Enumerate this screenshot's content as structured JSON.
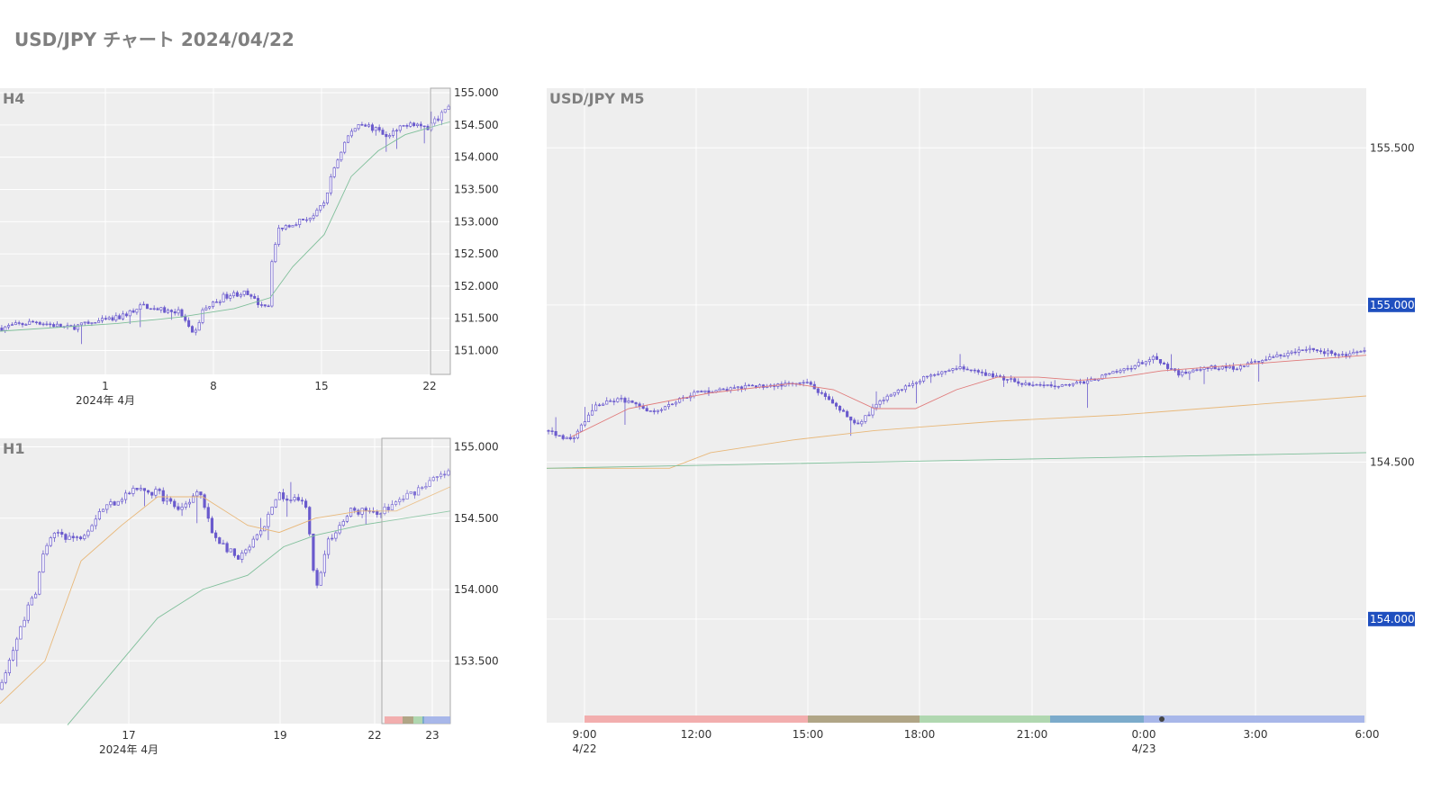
{
  "page_title": "USD/JPY チャート 2024/04/22",
  "colors": {
    "plot_bg": "#eeeeee",
    "grid": "#ffffff",
    "candle": "#6a5acd",
    "ma_fast": "#e07a7a",
    "ma_mid": "#e8b87a",
    "ma_slow": "#7fbf9a",
    "price_label_bg": "#1f4fbf",
    "session_colors": [
      "#f2a6a6",
      "#a89c7a",
      "#a8d4a8",
      "#6fa3c6",
      "#a0b0e8"
    ]
  },
  "chart_data": [
    {
      "id": "h4",
      "type": "candlestick",
      "title": "H4",
      "y_ticks": [
        "151.000",
        "151.500",
        "152.000",
        "152.500",
        "153.000",
        "153.500",
        "154.000",
        "154.500",
        "155.000"
      ],
      "ylim": [
        150.63,
        155.07
      ],
      "x_ticks": [
        "1",
        "8",
        "15",
        "22"
      ],
      "x_sublabel": "2024年 4月",
      "grid": true,
      "highlight_last": true,
      "close_path": [
        [
          0,
          151.35
        ],
        [
          0.08,
          151.45
        ],
        [
          0.15,
          151.35
        ],
        [
          0.2,
          151.42
        ],
        [
          0.26,
          151.5
        ],
        [
          0.32,
          151.7
        ],
        [
          0.36,
          151.62
        ],
        [
          0.4,
          151.6
        ],
        [
          0.43,
          151.2
        ],
        [
          0.45,
          151.62
        ],
        [
          0.5,
          151.85
        ],
        [
          0.54,
          151.9
        ],
        [
          0.57,
          151.75
        ],
        [
          0.6,
          151.7
        ],
        [
          0.6,
          152.3
        ],
        [
          0.62,
          152.9
        ],
        [
          0.7,
          153.1
        ],
        [
          0.72,
          153.3
        ],
        [
          0.74,
          153.8
        ],
        [
          0.77,
          154.3
        ],
        [
          0.8,
          154.55
        ],
        [
          0.84,
          154.4
        ],
        [
          0.86,
          154.3
        ],
        [
          0.91,
          154.55
        ],
        [
          0.95,
          154.45
        ],
        [
          1.0,
          154.8
        ]
      ],
      "ma_slow": [
        [
          0,
          151.3
        ],
        [
          0.26,
          151.42
        ],
        [
          0.4,
          151.52
        ],
        [
          0.52,
          151.65
        ],
        [
          0.6,
          151.82
        ],
        [
          0.65,
          152.3
        ],
        [
          0.72,
          152.8
        ],
        [
          0.78,
          153.7
        ],
        [
          0.84,
          154.1
        ],
        [
          0.9,
          154.35
        ],
        [
          1.0,
          154.55
        ]
      ]
    },
    {
      "id": "h1",
      "type": "candlestick",
      "title": "H1",
      "y_ticks": [
        "153.500",
        "154.000",
        "154.500",
        "155.000"
      ],
      "ylim": [
        153.06,
        155.06
      ],
      "x_ticks": [
        "17",
        "19",
        "22",
        "23"
      ],
      "x_sublabel": "2024年 4月",
      "grid": true,
      "highlight_last": true,
      "close_path": [
        [
          0,
          153.3
        ],
        [
          0.04,
          153.7
        ],
        [
          0.08,
          154.0
        ],
        [
          0.1,
          154.3
        ],
        [
          0.13,
          154.4
        ],
        [
          0.17,
          154.35
        ],
        [
          0.2,
          154.45
        ],
        [
          0.22,
          154.55
        ],
        [
          0.27,
          154.65
        ],
        [
          0.3,
          154.7
        ],
        [
          0.35,
          154.68
        ],
        [
          0.4,
          154.55
        ],
        [
          0.44,
          154.72
        ],
        [
          0.47,
          154.4
        ],
        [
          0.53,
          154.2
        ],
        [
          0.58,
          154.4
        ],
        [
          0.62,
          154.65
        ],
        [
          0.68,
          154.6
        ],
        [
          0.7,
          154.0
        ],
        [
          0.73,
          154.35
        ],
        [
          0.78,
          154.55
        ],
        [
          0.85,
          154.55
        ],
        [
          0.9,
          154.65
        ],
        [
          0.95,
          154.75
        ],
        [
          1.0,
          154.82
        ]
      ],
      "ma_mid": [
        [
          0,
          153.2
        ],
        [
          0.1,
          153.5
        ],
        [
          0.18,
          154.2
        ],
        [
          0.27,
          154.45
        ],
        [
          0.35,
          154.65
        ],
        [
          0.45,
          154.65
        ],
        [
          0.55,
          154.45
        ],
        [
          0.62,
          154.4
        ],
        [
          0.7,
          154.5
        ],
        [
          0.8,
          154.55
        ],
        [
          0.88,
          154.55
        ],
        [
          1.0,
          154.72
        ]
      ],
      "ma_slow": [
        [
          0.15,
          153.05
        ],
        [
          0.27,
          153.5
        ],
        [
          0.35,
          153.8
        ],
        [
          0.45,
          154.0
        ],
        [
          0.55,
          154.1
        ],
        [
          0.63,
          154.3
        ],
        [
          0.7,
          154.38
        ],
        [
          0.8,
          154.45
        ],
        [
          0.9,
          154.5
        ],
        [
          1.0,
          154.55
        ]
      ]
    },
    {
      "id": "m5",
      "type": "candlestick",
      "title": "USD/JPY M5",
      "y_ticks": [
        "154.000",
        "154.500",
        "155.000",
        "155.500"
      ],
      "ylim": [
        153.67,
        155.69
      ],
      "highlighted_levels": [
        "154.000",
        "155.000"
      ],
      "x_ticks": [
        "9:00",
        "12:00",
        "15:00",
        "18:00",
        "21:00",
        "0:00",
        "3:00",
        "6:00"
      ],
      "x_sublabels": {
        "9:00": "4/22",
        "0:00": "4/23"
      },
      "grid": true,
      "close_path": [
        [
          0,
          154.6
        ],
        [
          0.03,
          154.57
        ],
        [
          0.06,
          154.68
        ],
        [
          0.09,
          154.7
        ],
        [
          0.13,
          154.66
        ],
        [
          0.18,
          154.72
        ],
        [
          0.25,
          154.74
        ],
        [
          0.32,
          154.75
        ],
        [
          0.35,
          154.68
        ],
        [
          0.38,
          154.62
        ],
        [
          0.41,
          154.7
        ],
        [
          0.46,
          154.77
        ],
        [
          0.5,
          154.8
        ],
        [
          0.55,
          154.77
        ],
        [
          0.6,
          154.74
        ],
        [
          0.65,
          154.75
        ],
        [
          0.7,
          154.79
        ],
        [
          0.74,
          154.83
        ],
        [
          0.77,
          154.78
        ],
        [
          0.8,
          154.8
        ],
        [
          0.84,
          154.8
        ],
        [
          0.88,
          154.83
        ],
        [
          0.93,
          154.86
        ],
        [
          0.97,
          154.84
        ],
        [
          1.0,
          154.85
        ]
      ],
      "ma_fast": [
        [
          0.03,
          154.58
        ],
        [
          0.1,
          154.67
        ],
        [
          0.2,
          154.72
        ],
        [
          0.3,
          154.75
        ],
        [
          0.35,
          154.73
        ],
        [
          0.4,
          154.67
        ],
        [
          0.45,
          154.67
        ],
        [
          0.5,
          154.73
        ],
        [
          0.55,
          154.77
        ],
        [
          0.6,
          154.77
        ],
        [
          0.65,
          154.76
        ],
        [
          0.7,
          154.77
        ],
        [
          0.75,
          154.79
        ],
        [
          0.8,
          154.8
        ],
        [
          0.85,
          154.81
        ],
        [
          0.9,
          154.82
        ],
        [
          1.0,
          154.84
        ]
      ],
      "ma_mid": [
        [
          0,
          154.48
        ],
        [
          0.15,
          154.48
        ],
        [
          0.2,
          154.53
        ],
        [
          0.3,
          154.57
        ],
        [
          0.4,
          154.6
        ],
        [
          0.55,
          154.63
        ],
        [
          0.7,
          154.65
        ],
        [
          0.85,
          154.68
        ],
        [
          1.0,
          154.71
        ]
      ],
      "ma_slow": [
        [
          0,
          154.48
        ],
        [
          0.2,
          154.49
        ],
        [
          0.4,
          154.5
        ],
        [
          0.6,
          154.51
        ],
        [
          0.8,
          154.52
        ],
        [
          1.0,
          154.53
        ]
      ]
    }
  ]
}
